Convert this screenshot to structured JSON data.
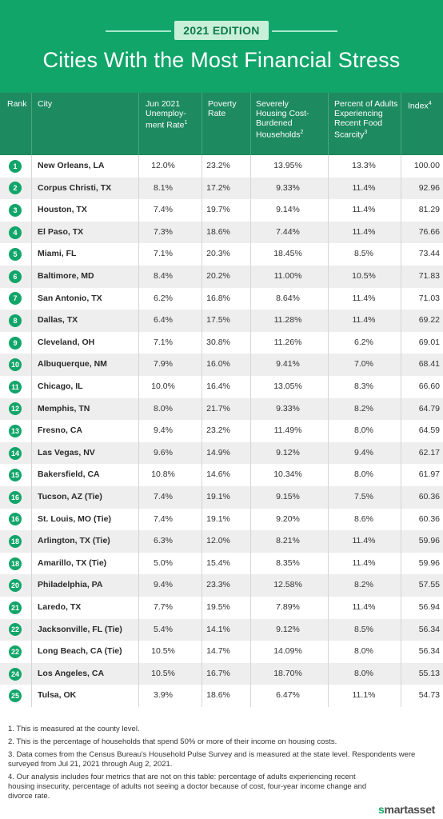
{
  "header": {
    "edition": "2021 EDITION",
    "title": "Cities With the Most Financial Stress",
    "bg_color": "#11a56a"
  },
  "columns": {
    "rank": "Rank",
    "city": "City",
    "unemployment": "Jun 2021 Unemploy-ment Rate",
    "unemployment_sup": "1",
    "poverty": "Poverty Rate",
    "housing": "Severely Housing Cost-Burdened Households",
    "housing_sup": "2",
    "food": "Percent of Adults Experiencing Recent Food Scarcity",
    "food_sup": "3",
    "index": "Index",
    "index_sup": "4"
  },
  "rows": [
    {
      "rank": "1",
      "city": "New Orleans, LA",
      "unemployment": "12.0%",
      "poverty": "23.2%",
      "housing": "13.95%",
      "food": "13.3%",
      "index": "100.00"
    },
    {
      "rank": "2",
      "city": "Corpus Christi, TX",
      "unemployment": "8.1%",
      "poverty": "17.2%",
      "housing": "9.33%",
      "food": "11.4%",
      "index": "92.96"
    },
    {
      "rank": "3",
      "city": "Houston, TX",
      "unemployment": "7.4%",
      "poverty": "19.7%",
      "housing": "9.14%",
      "food": "11.4%",
      "index": "81.29"
    },
    {
      "rank": "4",
      "city": "El Paso, TX",
      "unemployment": "7.3%",
      "poverty": "18.6%",
      "housing": "7.44%",
      "food": "11.4%",
      "index": "76.66"
    },
    {
      "rank": "5",
      "city": "Miami, FL",
      "unemployment": "7.1%",
      "poverty": "20.3%",
      "housing": "18.45%",
      "food": "8.5%",
      "index": "73.44"
    },
    {
      "rank": "6",
      "city": "Baltimore, MD",
      "unemployment": "8.4%",
      "poverty": "20.2%",
      "housing": "11.00%",
      "food": "10.5%",
      "index": "71.83"
    },
    {
      "rank": "7",
      "city": "San Antonio, TX",
      "unemployment": "6.2%",
      "poverty": "16.8%",
      "housing": "8.64%",
      "food": "11.4%",
      "index": "71.03"
    },
    {
      "rank": "8",
      "city": "Dallas, TX",
      "unemployment": "6.4%",
      "poverty": "17.5%",
      "housing": "11.28%",
      "food": "11.4%",
      "index": "69.22"
    },
    {
      "rank": "9",
      "city": "Cleveland, OH",
      "unemployment": "7.1%",
      "poverty": "30.8%",
      "housing": "11.26%",
      "food": "6.2%",
      "index": "69.01"
    },
    {
      "rank": "10",
      "city": "Albuquerque, NM",
      "unemployment": "7.9%",
      "poverty": "16.0%",
      "housing": "9.41%",
      "food": "7.0%",
      "index": "68.41"
    },
    {
      "rank": "11",
      "city": "Chicago, IL",
      "unemployment": "10.0%",
      "poverty": "16.4%",
      "housing": "13.05%",
      "food": "8.3%",
      "index": "66.60"
    },
    {
      "rank": "12",
      "city": "Memphis, TN",
      "unemployment": "8.0%",
      "poverty": "21.7%",
      "housing": "9.33%",
      "food": "8.2%",
      "index": "64.79"
    },
    {
      "rank": "13",
      "city": "Fresno, CA",
      "unemployment": "9.4%",
      "poverty": "23.2%",
      "housing": "11.49%",
      "food": "8.0%",
      "index": "64.59"
    },
    {
      "rank": "14",
      "city": "Las Vegas, NV",
      "unemployment": "9.6%",
      "poverty": "14.9%",
      "housing": "9.12%",
      "food": "9.4%",
      "index": "62.17"
    },
    {
      "rank": "15",
      "city": "Bakersfield, CA",
      "unemployment": "10.8%",
      "poverty": "14.6%",
      "housing": "10.34%",
      "food": "8.0%",
      "index": "61.97"
    },
    {
      "rank": "16",
      "city": "Tucson, AZ (Tie)",
      "unemployment": "7.4%",
      "poverty": "19.1%",
      "housing": "9.15%",
      "food": "7.5%",
      "index": "60.36"
    },
    {
      "rank": "16",
      "city": "St. Louis, MO (Tie)",
      "unemployment": "7.4%",
      "poverty": "19.1%",
      "housing": "9.20%",
      "food": "8.6%",
      "index": "60.36"
    },
    {
      "rank": "18",
      "city": "Arlington, TX (Tie)",
      "unemployment": "6.3%",
      "poverty": "12.0%",
      "housing": "8.21%",
      "food": "11.4%",
      "index": "59.96"
    },
    {
      "rank": "18",
      "city": "Amarillo, TX (Tie)",
      "unemployment": "5.0%",
      "poverty": "15.4%",
      "housing": "8.35%",
      "food": "11.4%",
      "index": "59.96"
    },
    {
      "rank": "20",
      "city": "Philadelphia, PA",
      "unemployment": "9.4%",
      "poverty": "23.3%",
      "housing": "12.58%",
      "food": "8.2%",
      "index": "57.55"
    },
    {
      "rank": "21",
      "city": "Laredo, TX",
      "unemployment": "7.7%",
      "poverty": "19.5%",
      "housing": "7.89%",
      "food": "11.4%",
      "index": "56.94"
    },
    {
      "rank": "22",
      "city": "Jacksonville, FL (Tie)",
      "unemployment": "5.4%",
      "poverty": "14.1%",
      "housing": "9.12%",
      "food": "8.5%",
      "index": "56.34"
    },
    {
      "rank": "22",
      "city": "Long Beach, CA (Tie)",
      "unemployment": "10.5%",
      "poverty": "14.7%",
      "housing": "14.09%",
      "food": "8.0%",
      "index": "56.34"
    },
    {
      "rank": "24",
      "city": "Los Angeles, CA",
      "unemployment": "10.5%",
      "poverty": "16.7%",
      "housing": "18.70%",
      "food": "8.0%",
      "index": "55.13"
    },
    {
      "rank": "25",
      "city": "Tulsa, OK",
      "unemployment": "3.9%",
      "poverty": "18.6%",
      "housing": "6.47%",
      "food": "11.1%",
      "index": "54.73"
    }
  ],
  "footnotes": [
    "1. This is measured at the county level.",
    "2. This is the percentage of households that spend 50% or more of their income on housing costs.",
    "3. Data comes from the Census Bureau's Household Pulse Survey and is measured at the state level. Respondents were surveyed from Jul 21, 2021 through Aug 2, 2021.",
    "4. Our analysis includes four metrics that are not on this table: percentage of adults experiencing recent housing insecurity, percentage of adults not seeing a doctor because of cost, four-year income change and divorce rate."
  ],
  "brand": {
    "s": "s",
    "rest": "martasset"
  }
}
